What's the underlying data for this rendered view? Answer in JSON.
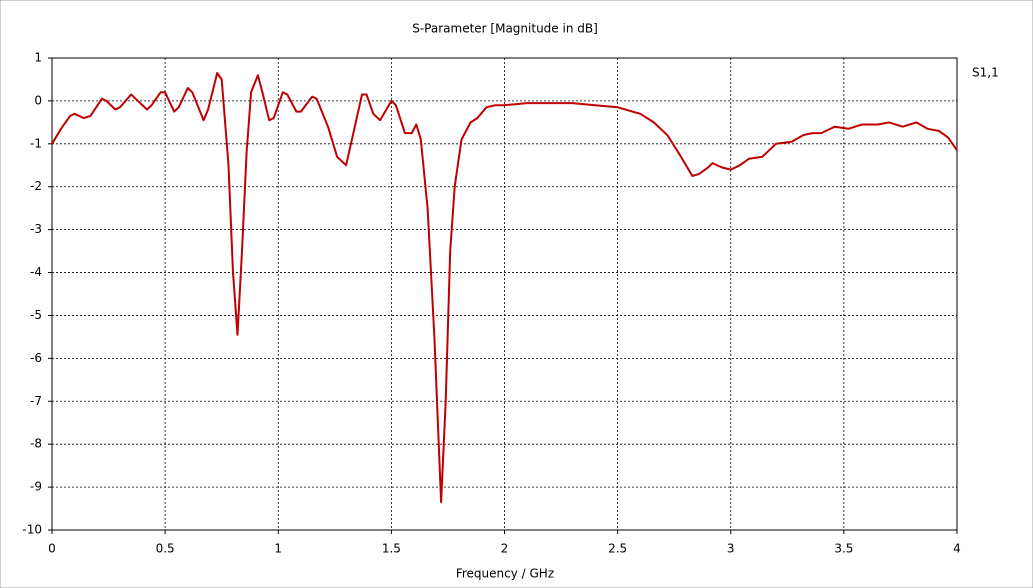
{
  "chart_data": {
    "type": "line",
    "title": "S-Parameter [Magnitude in dB]",
    "xlabel": "Frequency / GHz",
    "x": [
      0,
      0.04,
      0.08,
      0.1,
      0.14,
      0.17,
      0.22,
      0.24,
      0.28,
      0.3,
      0.35,
      0.37,
      0.42,
      0.44,
      0.48,
      0.5,
      0.54,
      0.56,
      0.6,
      0.62,
      0.67,
      0.69,
      0.73,
      0.75,
      0.78,
      0.8,
      0.82,
      0.84,
      0.86,
      0.88,
      0.91,
      0.93,
      0.96,
      0.98,
      1.02,
      1.04,
      1.08,
      1.1,
      1.15,
      1.17,
      1.22,
      1.26,
      1.3,
      1.33,
      1.37,
      1.39,
      1.42,
      1.45,
      1.5,
      1.52,
      1.56,
      1.59,
      1.61,
      1.63,
      1.66,
      1.69,
      1.72,
      1.74,
      1.76,
      1.78,
      1.81,
      1.85,
      1.88,
      1.92,
      1.96,
      2.0,
      2.1,
      2.2,
      2.3,
      2.4,
      2.5,
      2.6,
      2.66,
      2.72,
      2.78,
      2.83,
      2.86,
      2.9,
      2.92,
      2.96,
      3.0,
      3.04,
      3.08,
      3.14,
      3.2,
      3.27,
      3.32,
      3.36,
      3.4,
      3.46,
      3.52,
      3.58,
      3.65,
      3.7,
      3.76,
      3.82,
      3.87,
      3.92,
      3.96,
      4.0
    ],
    "series": [
      {
        "name": "S1,1",
        "color": "#c00000",
        "values": [
          -1.0,
          -0.65,
          -0.35,
          -0.3,
          -0.4,
          -0.35,
          0.05,
          0.0,
          -0.2,
          -0.15,
          0.15,
          0.05,
          -0.2,
          -0.1,
          0.2,
          0.2,
          -0.25,
          -0.15,
          0.3,
          0.2,
          -0.45,
          -0.2,
          0.65,
          0.5,
          -1.5,
          -4.0,
          -5.45,
          -3.5,
          -1.2,
          0.2,
          0.6,
          0.2,
          -0.45,
          -0.4,
          0.2,
          0.15,
          -0.25,
          -0.25,
          0.1,
          0.05,
          -0.6,
          -1.3,
          -1.5,
          -0.8,
          0.15,
          0.15,
          -0.3,
          -0.45,
          0.0,
          -0.1,
          -0.75,
          -0.75,
          -0.55,
          -0.9,
          -2.5,
          -5.5,
          -9.35,
          -7.0,
          -3.5,
          -2.0,
          -0.9,
          -0.5,
          -0.4,
          -0.15,
          -0.1,
          -0.1,
          -0.05,
          -0.05,
          -0.05,
          -0.1,
          -0.15,
          -0.3,
          -0.5,
          -0.8,
          -1.3,
          -1.75,
          -1.7,
          -1.55,
          -1.45,
          -1.55,
          -1.6,
          -1.5,
          -1.35,
          -1.3,
          -1.0,
          -0.95,
          -0.8,
          -0.75,
          -0.75,
          -0.6,
          -0.65,
          -0.55,
          -0.55,
          -0.5,
          -0.6,
          -0.5,
          -0.65,
          -0.7,
          -0.85,
          -1.15
        ]
      }
    ],
    "xlim": [
      0,
      4
    ],
    "xticks": [
      0,
      0.5,
      1,
      1.5,
      2,
      2.5,
      3,
      3.5,
      4
    ],
    "ylim": [
      -10,
      1
    ],
    "yticks": [
      1,
      0,
      -1,
      -2,
      -3,
      -4,
      -5,
      -6,
      -7,
      -8,
      -9,
      -10
    ],
    "grid": true
  }
}
